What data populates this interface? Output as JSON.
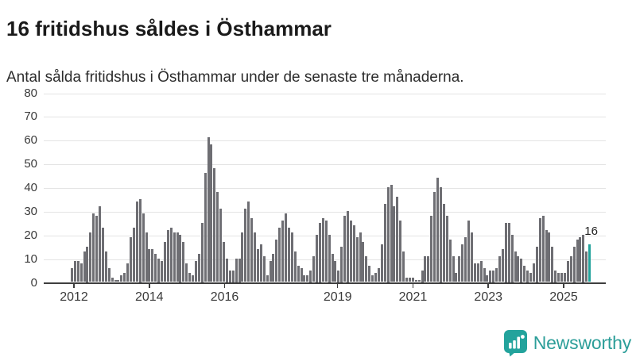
{
  "header": {
    "title": "16 fritidshus såldes i Östhammar",
    "subtitle": "Antal sålda fritidshus i Östhammar under de senaste tre månaderna."
  },
  "chart_data": {
    "type": "bar",
    "title": "16 fritidshus såldes i Östhammar",
    "xlabel": "",
    "ylabel": "",
    "x_start": "2012-01",
    "x_unit": "month",
    "ylim": [
      0,
      80
    ],
    "grid": "horizontal",
    "legend": "none",
    "y_ticks": [
      0,
      10,
      20,
      30,
      40,
      50,
      60,
      70,
      80
    ],
    "x_tick_years": [
      "2012",
      "2014",
      "2016",
      "2019",
      "2021",
      "2023",
      "2025"
    ],
    "values": [
      6,
      9,
      9,
      8,
      13,
      15,
      21,
      29,
      28,
      32,
      23,
      13,
      6,
      2,
      1,
      1,
      3,
      4,
      8,
      19,
      23,
      34,
      35,
      29,
      21,
      14,
      14,
      12,
      10,
      9,
      17,
      22,
      23,
      21,
      21,
      20,
      17,
      8,
      4,
      3,
      9,
      12,
      25,
      46,
      61,
      58,
      48,
      38,
      31,
      17,
      10,
      5,
      5,
      10,
      10,
      21,
      31,
      34,
      27,
      21,
      14,
      16,
      11,
      3,
      9,
      12,
      18,
      23,
      26,
      29,
      23,
      21,
      13,
      7,
      6,
      3,
      3,
      5,
      11,
      20,
      25,
      27,
      26,
      20,
      12,
      9,
      5,
      15,
      28,
      30,
      26,
      24,
      19,
      21,
      17,
      11,
      7,
      3,
      4,
      6,
      16,
      33,
      40,
      41,
      32,
      36,
      26,
      13,
      2,
      2,
      2,
      1,
      1,
      5,
      11,
      11,
      28,
      38,
      44,
      40,
      33,
      28,
      18,
      11,
      4,
      11,
      16,
      19,
      26,
      21,
      8,
      8,
      9,
      6,
      3,
      5,
      5,
      6,
      11,
      14,
      25,
      25,
      20,
      13,
      11,
      10,
      7,
      5,
      4,
      8,
      15,
      27,
      28,
      22,
      21,
      15,
      5,
      4,
      4,
      4,
      9,
      11,
      15,
      18,
      19,
      20,
      13,
      16
    ],
    "highlight_last": {
      "value": 16,
      "label": "16"
    }
  },
  "annotation": {
    "last_value_label": "16"
  },
  "footer": {
    "logo_text": "Newsworthy"
  },
  "colors": {
    "bar": "#6E6E73",
    "accent": "#23A39C",
    "logo_text": "#2C9E99",
    "grid": "#E4E4E4",
    "axis": "#3E3E3E",
    "axis_text": "#3A3A3A",
    "title_text": "#1A1A1A",
    "background": "#FFFFFF"
  }
}
